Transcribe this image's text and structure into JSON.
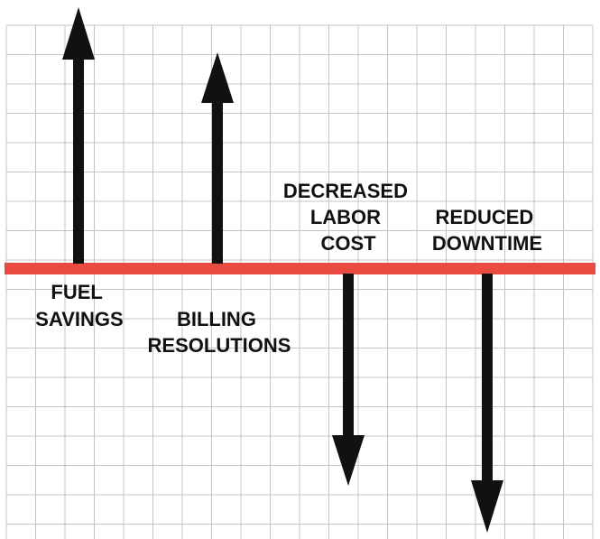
{
  "colors": {
    "baseline": "#ea4a40",
    "arrow": "#111111",
    "grid": "#c4c4c4",
    "background": "#ffffff"
  },
  "labels": {
    "fuel_savings": [
      "FUEL",
      "SAVINGS"
    ],
    "billing_resolutions": [
      "BILLING",
      "RESOLUTIONS"
    ],
    "decreased_labor_cost": [
      "DECREASED",
      "LABOR",
      "COST"
    ],
    "reduced_downtime": [
      "REDUCED",
      "DOWNTIME"
    ]
  },
  "arrows": [
    {
      "id": "fuel-savings",
      "direction": "up"
    },
    {
      "id": "billing-resolutions",
      "direction": "up"
    },
    {
      "id": "decreased-labor-cost",
      "direction": "down"
    },
    {
      "id": "reduced-downtime",
      "direction": "down"
    }
  ]
}
